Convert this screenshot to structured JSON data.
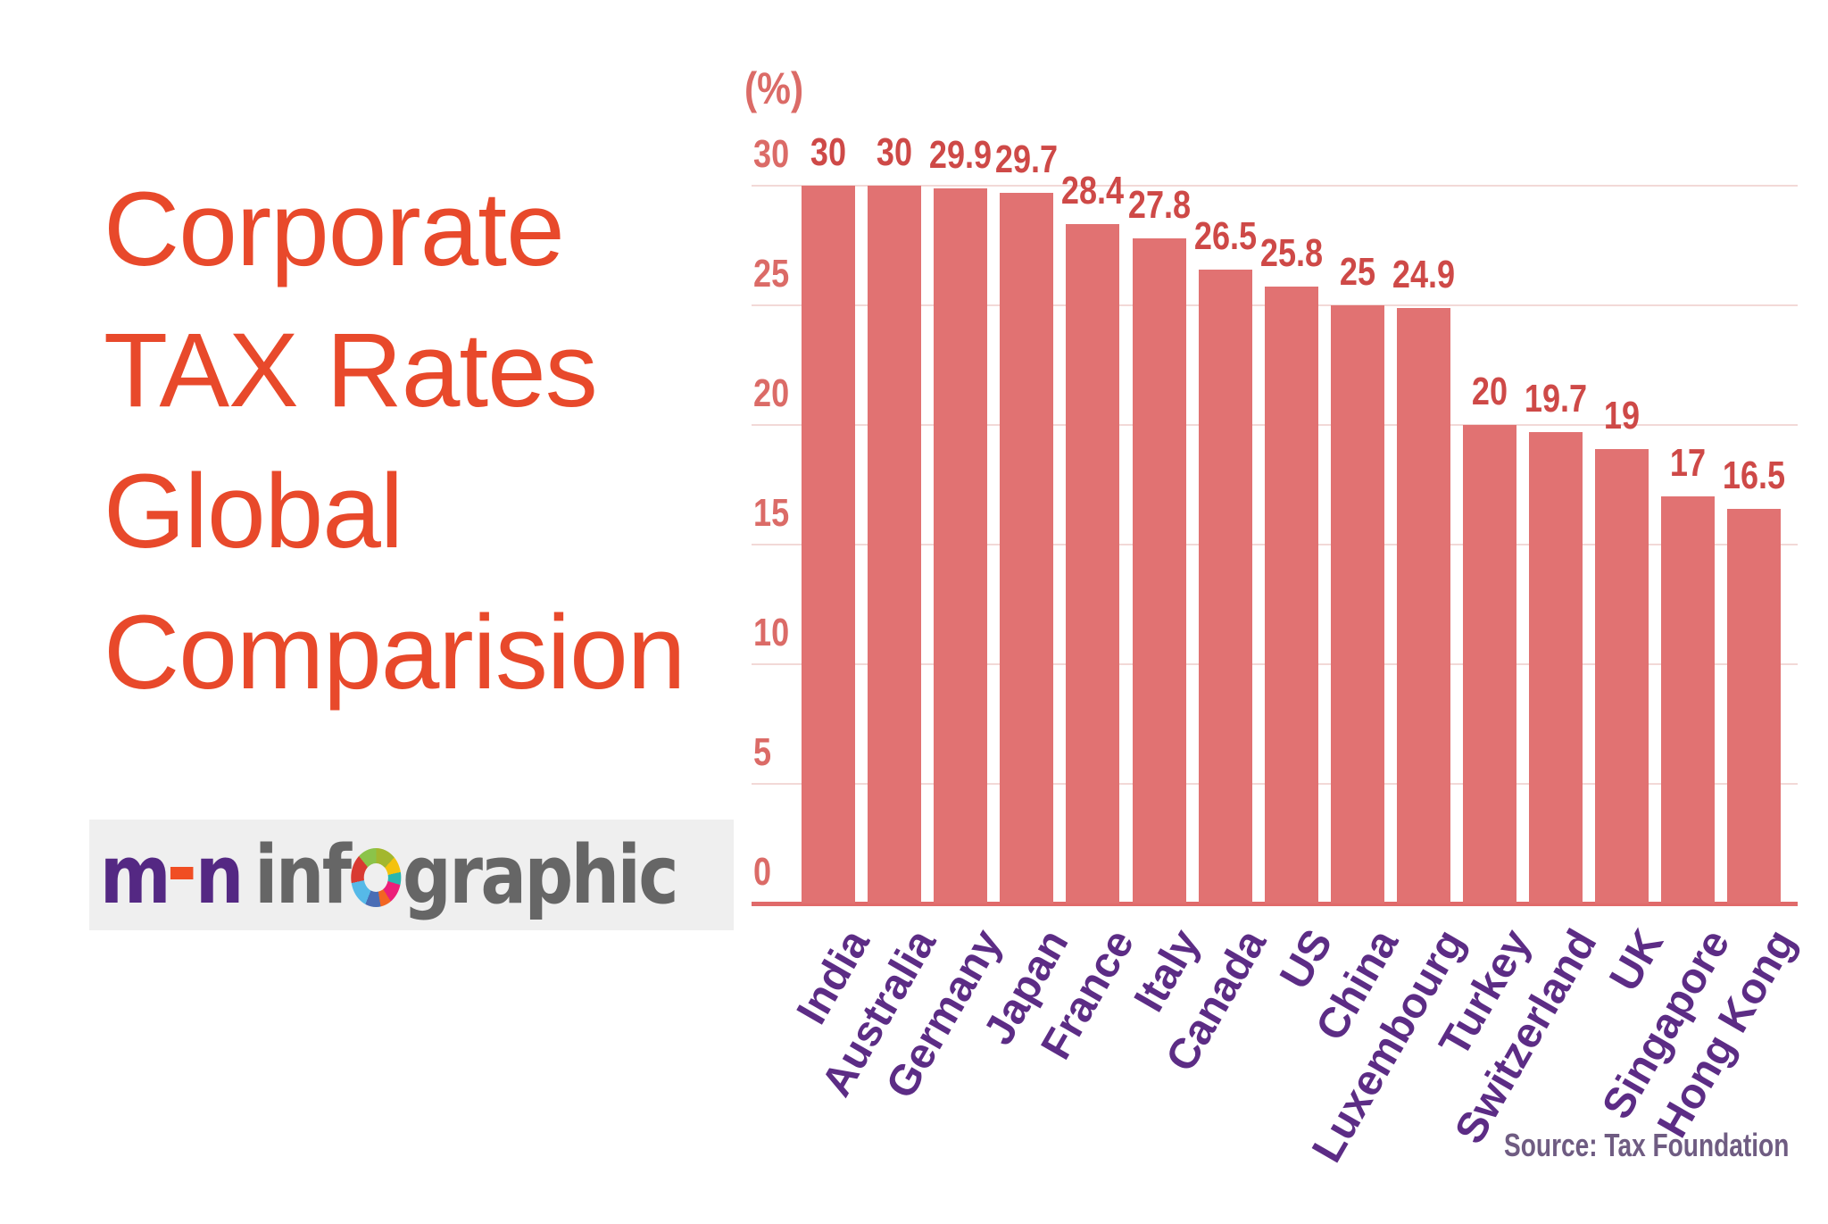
{
  "title": {
    "lines": [
      "Corporate",
      "TAX Rates",
      "Global",
      "Comparision"
    ],
    "color": "#e8492b"
  },
  "logo": {
    "m": "m",
    "n": "n",
    "inf": "inf",
    "graphic": "graphic"
  },
  "chart_data": {
    "type": "bar",
    "title": "Corporate TAX Rates Global Comparision",
    "unit_label": "(%)",
    "categories": [
      "India",
      "Australia",
      "Germany",
      "Japan",
      "France",
      "Italy",
      "Canada",
      "US",
      "China",
      "Luxembourg",
      "Turkey",
      "Switzerland",
      "UK",
      "Singapore",
      "Hong Kong"
    ],
    "values": [
      30,
      30,
      29.9,
      29.7,
      28.4,
      27.8,
      26.5,
      25.8,
      25,
      24.9,
      20,
      19.7,
      19,
      17,
      16.5
    ],
    "ylim": [
      0,
      30
    ],
    "yticks": [
      0,
      5,
      10,
      15,
      20,
      25,
      30
    ],
    "grid": "horizontal",
    "legend": "none",
    "source_label": "Source: Tax Foundation",
    "colors": {
      "bar": "#e17272",
      "value_label": "#ce4947",
      "axis_tick": "#db6b67",
      "gridline": "#f2d9d7",
      "baseline": "#e06a6a",
      "category_label": "#5c2c85",
      "source": "#6f5c82",
      "title": "#e8492b"
    }
  }
}
